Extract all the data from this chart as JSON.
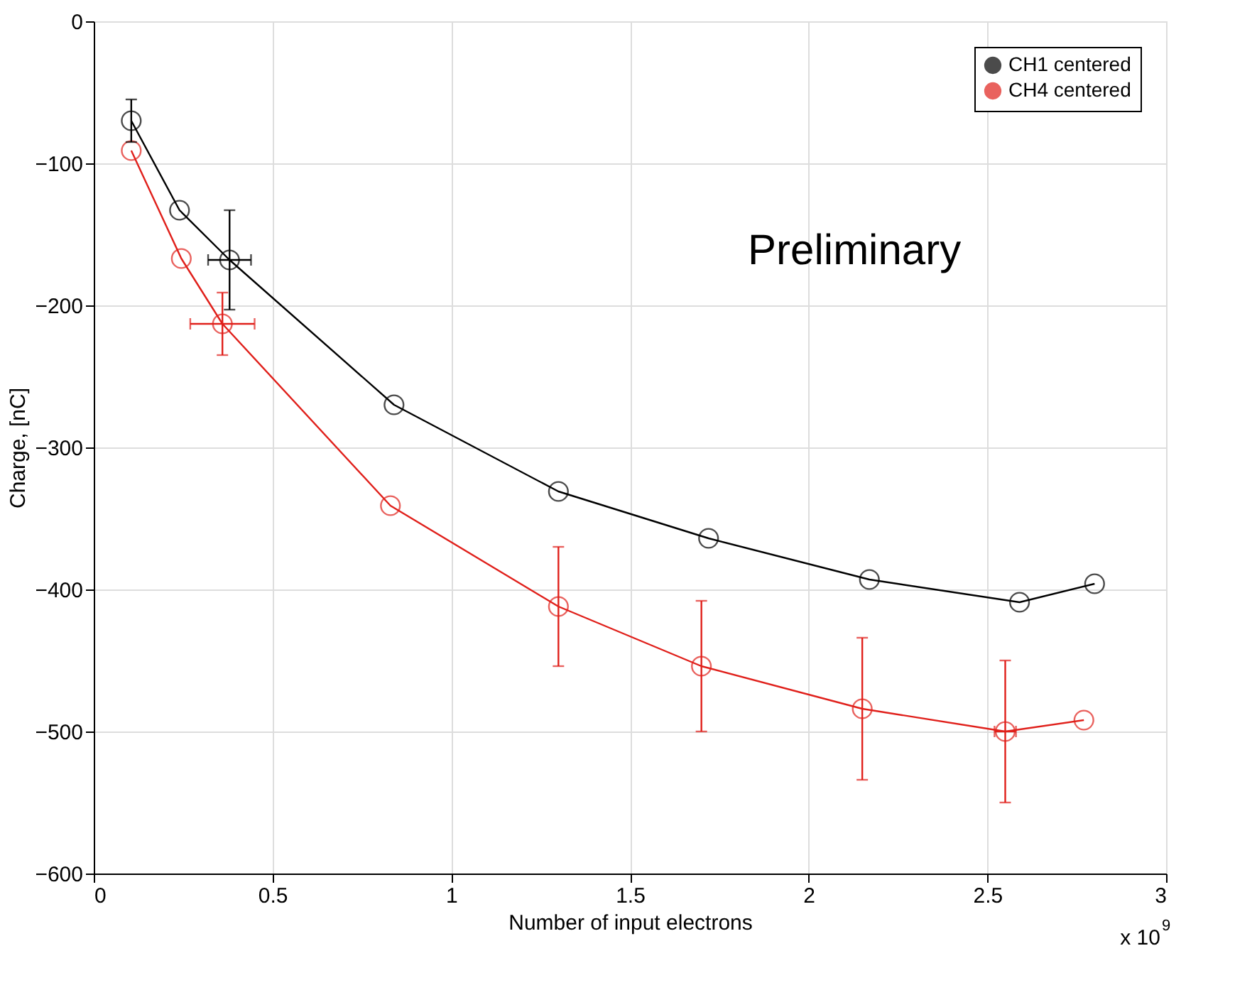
{
  "chart_data": {
    "type": "line",
    "xlabel": "Number of input electrons",
    "ylabel": "Charge, [nC]",
    "xlim": [
      0,
      3
    ],
    "xticks": [
      0,
      0.5,
      1,
      1.5,
      2,
      2.5,
      3
    ],
    "ylim": [
      -600,
      0
    ],
    "yticks": [
      -600,
      -500,
      -400,
      -300,
      -200,
      -100,
      0
    ],
    "grid": true,
    "legend": "top right",
    "marker": "circle",
    "line_style": "solid",
    "annotations": [
      "Preliminary",
      "x 10$^{9}$"
    ],
    "series": [
      {
        "name": "CH1 centered",
        "color": "#000000",
        "x": [
          0.105,
          0.24,
          0.38,
          0.84,
          1.3,
          1.72,
          2.17,
          2.59,
          2.8
        ],
        "values": [
          -70,
          -133,
          -168,
          -270,
          -331,
          -364,
          -393,
          -409,
          -396
        ],
        "errors": [
          15,
          null,
          35,
          null,
          null,
          null,
          null,
          null,
          null
        ],
        "xerrors": [
          null,
          null,
          0.06,
          null,
          null,
          null,
          null,
          null,
          null
        ]
      },
      {
        "name": "CH4 centered",
        "color": "#e0201b",
        "x": [
          0.105,
          0.245,
          0.36,
          0.83,
          1.3,
          1.7,
          2.15,
          2.55,
          2.77
        ],
        "values": [
          -91,
          -167,
          -213,
          -341,
          -412,
          -454,
          -484,
          -500,
          -492
        ],
        "errors": [
          null,
          null,
          22,
          null,
          42,
          46,
          50,
          50,
          null
        ],
        "xerrors": [
          null,
          null,
          0.09,
          null,
          null,
          null,
          null,
          0.03,
          null
        ]
      }
    ]
  }
}
